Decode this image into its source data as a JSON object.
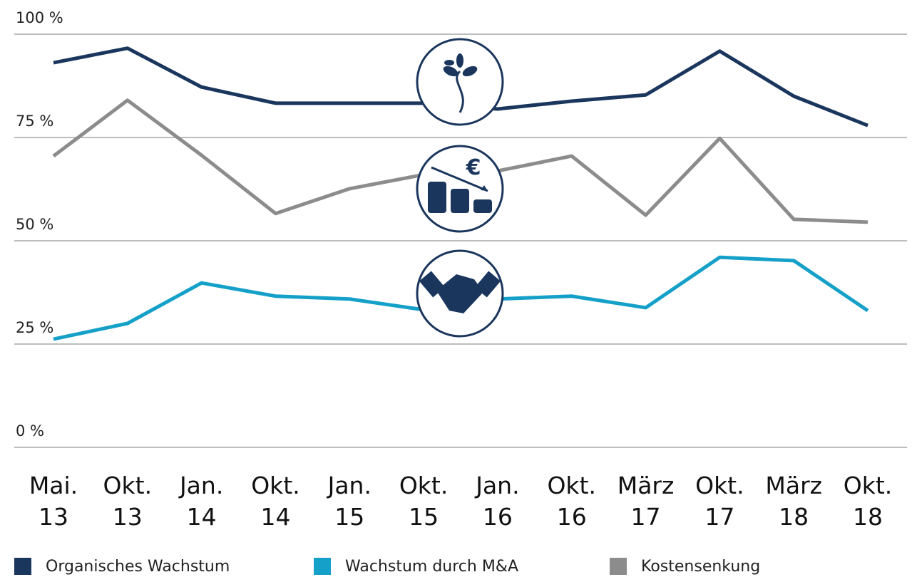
{
  "chart_data": {
    "type": "line",
    "categories": [
      "Mai. 13",
      "Okt. 13",
      "Jan. 14",
      "Okt. 14",
      "Jan. 15",
      "Okt. 15",
      "Jan. 16",
      "Okt. 16",
      "März 17",
      "Okt. 17",
      "März 18",
      "Okt. 18"
    ],
    "series": [
      {
        "name": "Organisches Wachstum",
        "color": "#1b365d",
        "values": [
          93.1,
          96.6,
          87.2,
          83.3,
          83.3,
          83.3,
          81.9,
          83.8,
          85.3,
          95.9,
          85.0,
          77.9
        ]
      },
      {
        "name": "Wachstum durch M&A",
        "color": "#14a0c8",
        "values": [
          26.2,
          30.0,
          39.8,
          36.6,
          35.9,
          33.3,
          35.9,
          36.6,
          33.8,
          46.0,
          45.2,
          33.1
        ]
      },
      {
        "name": "Kostensenkung",
        "color": "#8c8c8c",
        "values": [
          70.5,
          84.0,
          70.7,
          56.6,
          62.6,
          66.0,
          66.9,
          70.5,
          56.2,
          74.8,
          55.2,
          54.5
        ]
      }
    ],
    "ylim": [
      0,
      100
    ],
    "yticks": [
      {
        "value": 0,
        "label": "0 %"
      },
      {
        "value": 25,
        "label": "25 %"
      },
      {
        "value": 50,
        "label": "50 %"
      },
      {
        "value": 75,
        "label": "75 %"
      },
      {
        "value": 100,
        "label": "100 %"
      }
    ],
    "grid": true,
    "legend": "bottom"
  }
}
